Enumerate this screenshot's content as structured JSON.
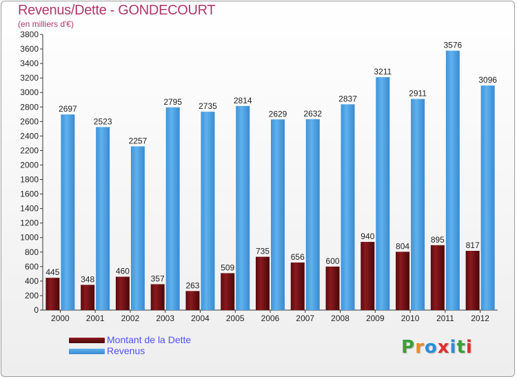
{
  "header": {
    "title": "Revenus/Dette - GONDECOURT",
    "subtitle": "(en milliers d'€)"
  },
  "colors": {
    "dette": "#6e0c10",
    "revenus": "#4a9fe3",
    "title": "#b0356a",
    "legend_text": "#5050ff"
  },
  "legend": {
    "dette_label": "Montant de la Dette",
    "revenus_label": "Revenus"
  },
  "logo": {
    "letters": [
      "P",
      "r",
      "o",
      "x",
      "i",
      "t",
      "i"
    ],
    "colors": [
      "#3ba03b",
      "#f08a1c",
      "#2a8fd6",
      "#e03030",
      "#2a8fd6",
      "#3ba03b",
      "#e03030"
    ]
  },
  "chart_data": {
    "type": "bar",
    "title": "Revenus/Dette - GONDECOURT",
    "subtitle": "(en milliers d'€)",
    "categories": [
      "2000",
      "2001",
      "2002",
      "2003",
      "2004",
      "2005",
      "2006",
      "2007",
      "2008",
      "2009",
      "2010",
      "2011",
      "2012"
    ],
    "series": [
      {
        "name": "Montant de la Dette",
        "values": [
          445,
          348,
          460,
          357,
          263,
          509,
          735,
          656,
          600,
          940,
          804,
          895,
          817
        ]
      },
      {
        "name": "Revenus",
        "values": [
          2697,
          2523,
          2257,
          2795,
          2735,
          2814,
          2629,
          2632,
          2837,
          3211,
          2911,
          3576,
          3096
        ]
      }
    ],
    "ylim": [
      0,
      3800
    ],
    "ytick_step": 200,
    "grid": false,
    "legend_position": "bottom-left"
  }
}
